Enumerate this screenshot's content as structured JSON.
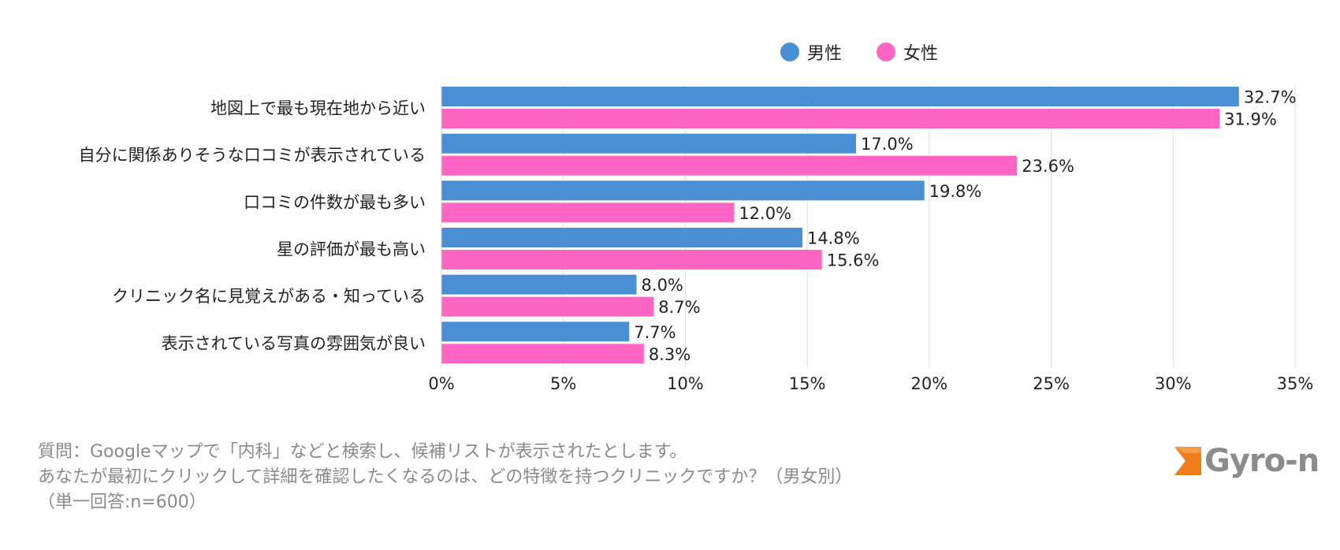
{
  "legend": [
    {
      "name": "男性",
      "color": "#4a8fd4"
    },
    {
      "name": "女性",
      "color": "#ff66c4"
    }
  ],
  "chart_data": {
    "type": "bar",
    "orientation": "horizontal",
    "categories": [
      "地図上で最も現在地から近い",
      "自分に関係ありそうな口コミが表示されている",
      "口コミの件数が最も多い",
      "星の評価が最も高い",
      "クリニック名に見覚えがある・知っている",
      "表示されている写真の雰囲気が良い"
    ],
    "series": [
      {
        "name": "男性",
        "color": "#4a8fd4",
        "values": [
          32.7,
          17.0,
          19.8,
          14.8,
          8.0,
          7.7
        ],
        "labels": [
          "32.7%",
          "17.0%",
          "19.8%",
          "14.8%",
          "8.0%",
          "7.7%"
        ]
      },
      {
        "name": "女性",
        "color": "#ff66c4",
        "values": [
          31.9,
          23.6,
          12.0,
          15.6,
          8.7,
          8.3
        ],
        "labels": [
          "31.9%",
          "23.6%",
          "12.0%",
          "15.6%",
          "8.7%",
          "8.3%"
        ]
      }
    ],
    "xlim": [
      0,
      35
    ],
    "xticks": [
      0,
      5,
      10,
      15,
      20,
      25,
      30,
      35
    ],
    "xtick_labels": [
      "0%",
      "5%",
      "10%",
      "15%",
      "20%",
      "25%",
      "30%",
      "35%"
    ],
    "grid": true,
    "legend_position": "top"
  },
  "footnote": {
    "line1": "質問：Googleマップで「内科」などと検索し、候補リストが表示されたとします。",
    "line2": "あなたが最初にクリックして詳細を確認したくなるのは、どの特徴を持つクリニックですか？（男女別）",
    "line3": "（単一回答:n=600）"
  },
  "logo": {
    "text": "Gyro-n",
    "mark_color": "#ee7d1a"
  }
}
